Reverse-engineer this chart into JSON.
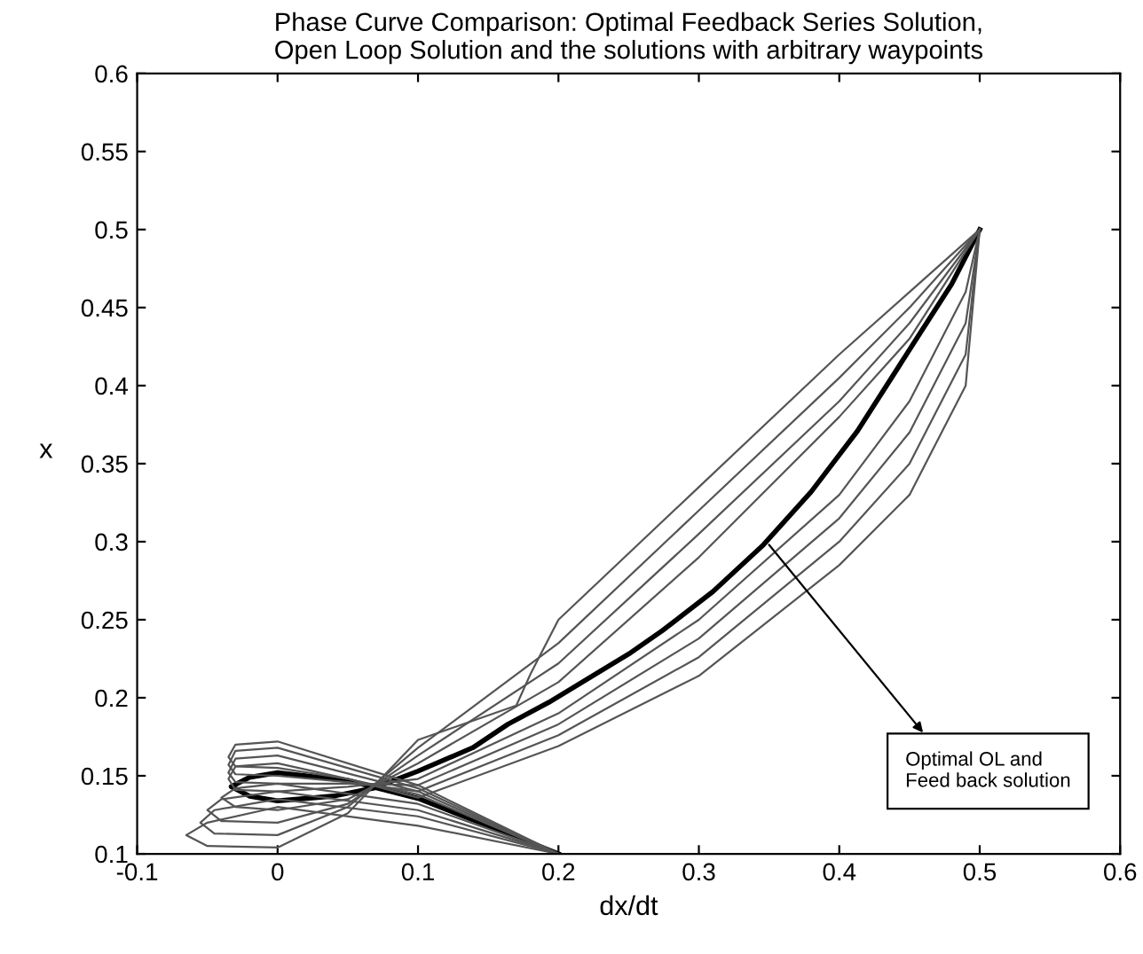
{
  "chart_data": {
    "type": "line",
    "title": "Phase Curve Comparison: Optimal Feedback Series Solution,\nOpen Loop Solution and the solutions with arbitrary waypoints",
    "xlabel": "dx/dt",
    "ylabel": "x",
    "xlim": [
      -0.1,
      0.6
    ],
    "xticks": [
      -0.1,
      0,
      0.1,
      0.2,
      0.3,
      0.4,
      0.5,
      0.6
    ],
    "ylim": [
      0.1,
      0.6
    ],
    "yticks": [
      0.1,
      0.15,
      0.2,
      0.25,
      0.3,
      0.35,
      0.4,
      0.45,
      0.5,
      0.55,
      0.6
    ],
    "grid": false,
    "legend": false,
    "marker": "none",
    "line_style": "solid",
    "annotations": [
      {
        "text": "Optimal OL and\nFeed back solution",
        "x": 0.35,
        "y": 0.298
      }
    ],
    "series": [
      {
        "color": "#000000",
        "x": [
          0.2,
          0.15,
          0.1,
          0.05,
          0,
          -0.02,
          -0.033,
          -0.02,
          0,
          0.04,
          0.068,
          0.1,
          0.139,
          0.164,
          0.193,
          0.25,
          0.274,
          0.31,
          0.346,
          0.38,
          0.413,
          0.455,
          0.48,
          0.5
        ],
        "values": [
          0.1,
          0.118,
          0.1355,
          0.147,
          0.152,
          0.149,
          0.143,
          0.137,
          0.134,
          0.137,
          0.142,
          0.153,
          0.168,
          0.183,
          0.197,
          0.228,
          0.243,
          0.268,
          0.298,
          0.332,
          0.371,
          0.43,
          0.465,
          0.5
        ]
      },
      {
        "color": "#555555",
        "x": [
          0.2,
          0.1,
          0,
          -0.03,
          -0.04,
          -0.03,
          0,
          0.05,
          0.1,
          0.2,
          0.3,
          0.4,
          0.45,
          0.5
        ],
        "values": [
          0.1,
          0.132,
          0.145,
          0.142,
          0.136,
          0.13,
          0.128,
          0.135,
          0.158,
          0.21,
          0.29,
          0.38,
          0.43,
          0.5
        ]
      },
      {
        "color": "#555555",
        "x": [
          0.2,
          0.1,
          0,
          -0.04,
          -0.05,
          -0.04,
          0,
          0.05,
          0.1,
          0.2,
          0.3,
          0.4,
          0.45,
          0.5
        ],
        "values": [
          0.1,
          0.128,
          0.14,
          0.135,
          0.128,
          0.121,
          0.12,
          0.132,
          0.163,
          0.222,
          0.305,
          0.39,
          0.44,
          0.5
        ]
      },
      {
        "color": "#555555",
        "x": [
          0.2,
          0.1,
          0,
          -0.045,
          -0.055,
          -0.045,
          0,
          0.05,
          0.1,
          0.2,
          0.3,
          0.4,
          0.45,
          0.5
        ],
        "values": [
          0.1,
          0.124,
          0.135,
          0.128,
          0.12,
          0.113,
          0.112,
          0.13,
          0.168,
          0.235,
          0.32,
          0.405,
          0.45,
          0.5
        ]
      },
      {
        "color": "#555555",
        "x": [
          0.2,
          0.1,
          0,
          -0.05,
          -0.065,
          -0.05,
          0,
          0.05,
          0.1,
          0.17,
          0.18,
          0.2,
          0.3,
          0.4,
          0.45,
          0.5
        ],
        "values": [
          0.1,
          0.118,
          0.13,
          0.12,
          0.112,
          0.105,
          0.104,
          0.126,
          0.173,
          0.195,
          0.215,
          0.25,
          0.335,
          0.42,
          0.46,
          0.5
        ]
      },
      {
        "color": "#555555",
        "x": [
          0.2,
          0.1,
          0,
          -0.03,
          -0.035,
          -0.03,
          0,
          0.05,
          0.1,
          0.2,
          0.3,
          0.4,
          0.45,
          0.49,
          0.5
        ],
        "values": [
          0.1,
          0.138,
          0.158,
          0.156,
          0.148,
          0.141,
          0.14,
          0.143,
          0.148,
          0.19,
          0.25,
          0.33,
          0.39,
          0.46,
          0.5
        ]
      },
      {
        "color": "#555555",
        "x": [
          0.2,
          0.1,
          0,
          -0.03,
          -0.035,
          -0.03,
          0,
          0.05,
          0.1,
          0.2,
          0.3,
          0.4,
          0.45,
          0.49,
          0.5
        ],
        "values": [
          0.1,
          0.14,
          0.163,
          0.161,
          0.152,
          0.146,
          0.145,
          0.145,
          0.144,
          0.183,
          0.238,
          0.315,
          0.37,
          0.44,
          0.5
        ]
      },
      {
        "color": "#555555",
        "x": [
          0.2,
          0.1,
          0,
          -0.03,
          -0.035,
          -0.03,
          0,
          0.05,
          0.1,
          0.2,
          0.3,
          0.4,
          0.45,
          0.49,
          0.5
        ],
        "values": [
          0.1,
          0.142,
          0.168,
          0.166,
          0.157,
          0.151,
          0.15,
          0.146,
          0.14,
          0.176,
          0.226,
          0.3,
          0.35,
          0.42,
          0.5
        ]
      },
      {
        "color": "#555555",
        "x": [
          0.2,
          0.1,
          0,
          -0.03,
          -0.035,
          -0.03,
          0,
          0.05,
          0.1,
          0.2,
          0.3,
          0.4,
          0.45,
          0.49,
          0.5
        ],
        "values": [
          0.1,
          0.144,
          0.172,
          0.17,
          0.162,
          0.156,
          0.155,
          0.148,
          0.136,
          0.169,
          0.214,
          0.285,
          0.33,
          0.4,
          0.5
        ]
      }
    ]
  }
}
